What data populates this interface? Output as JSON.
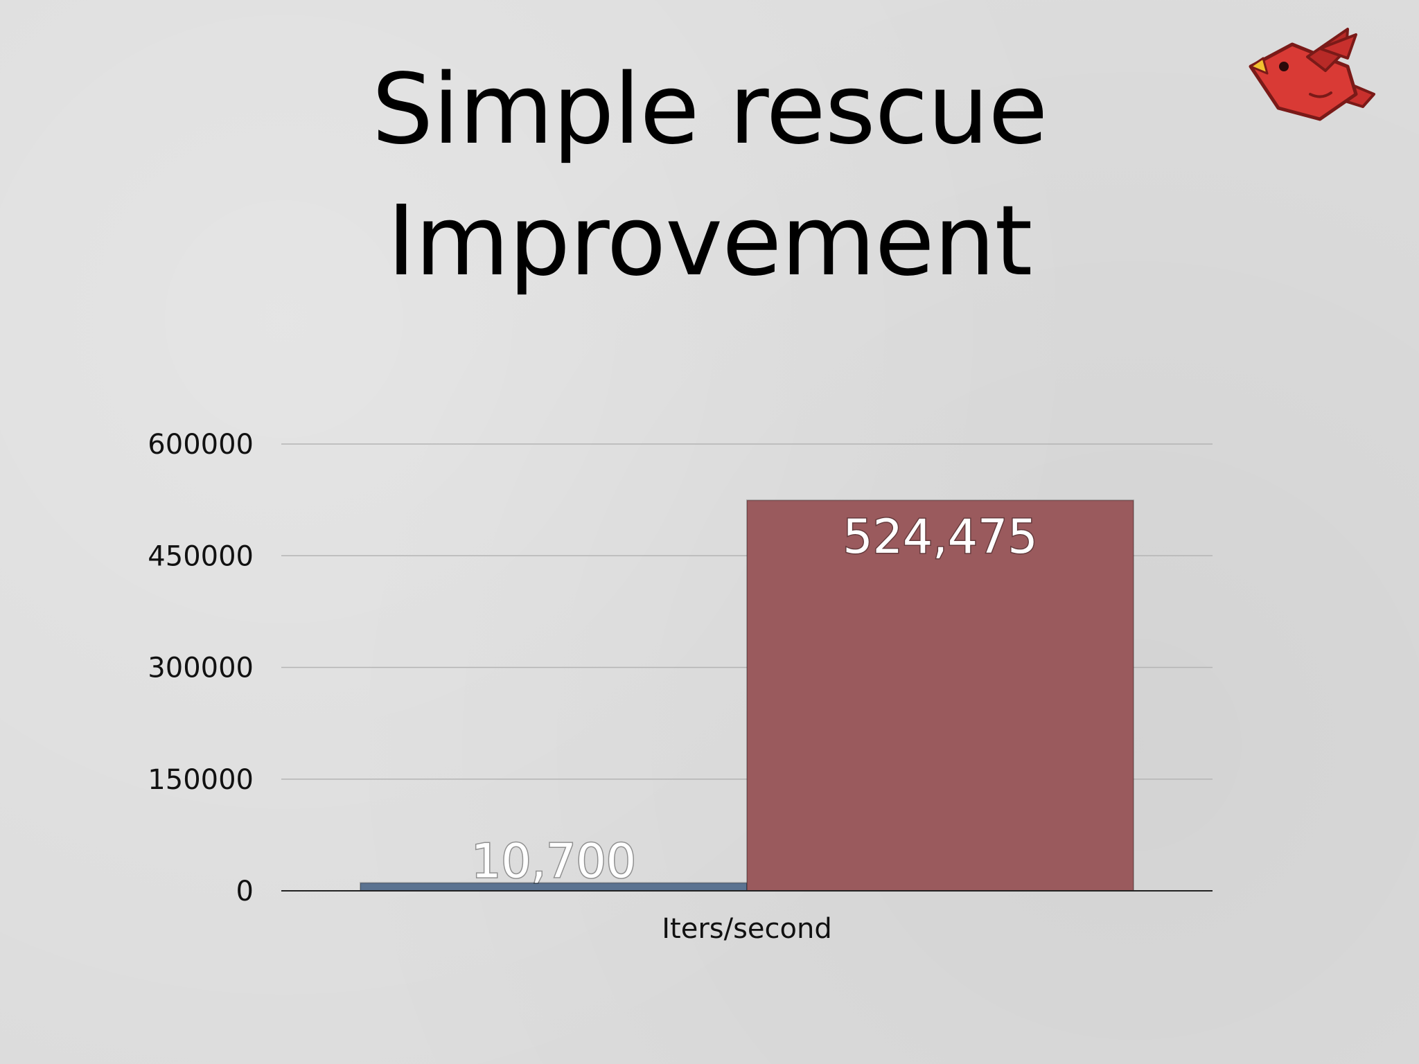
{
  "slide": {
    "title_line1": "Simple rescue",
    "title_line2": "Improvement",
    "logo_icon": "red-bird-icon"
  },
  "chart_data": {
    "type": "bar",
    "categories": [
      "Iters/second"
    ],
    "series": [
      {
        "values": [
          10700
        ],
        "label": "10,700",
        "color": "#5b7391"
      },
      {
        "values": [
          524475
        ],
        "label": "524,475",
        "color": "#9a5a5d"
      }
    ],
    "xlabel": "Iters/second",
    "ylabel": "",
    "ylim": [
      0,
      600000
    ],
    "yticks": [
      0,
      150000,
      300000,
      450000,
      600000
    ],
    "ytick_labels": [
      "0",
      "150000",
      "300000",
      "450000",
      "600000"
    ],
    "grid": true,
    "legend": "none"
  }
}
